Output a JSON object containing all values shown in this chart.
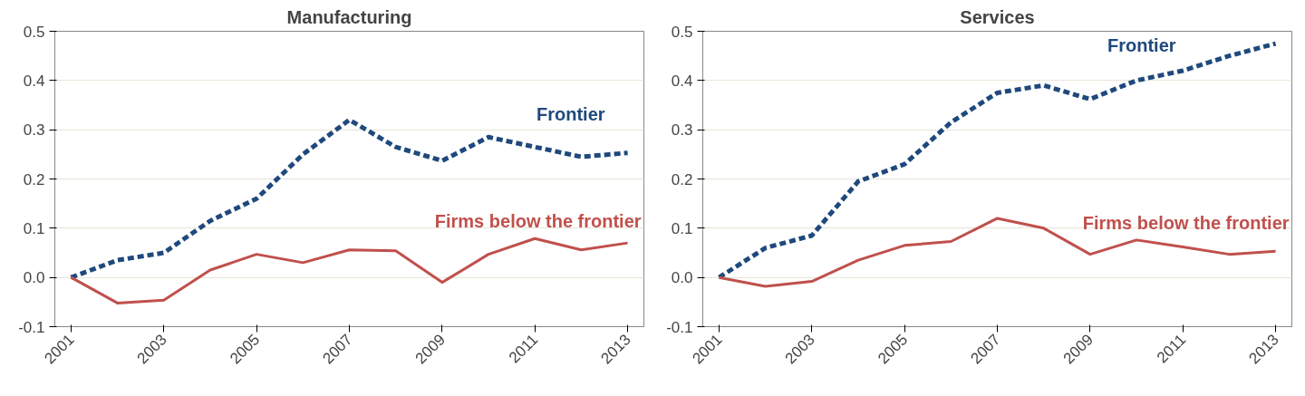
{
  "chart_data": [
    {
      "type": "line",
      "title": "Manufacturing",
      "categories": [
        "2001",
        null,
        "2003",
        null,
        "2005",
        null,
        "2007",
        null,
        "2009",
        null,
        "2011",
        null,
        "2013"
      ],
      "ylim": [
        -0.1,
        0.5
      ],
      "yticks": [
        {
          "value": -0.1,
          "label": "-0.1"
        },
        {
          "value": 0,
          "label": "0.0"
        },
        {
          "value": 0.1,
          "label": "0.1"
        },
        {
          "value": 0.2,
          "label": "0.2"
        },
        {
          "value": 0.3,
          "label": "0.3"
        },
        {
          "value": 0.4,
          "label": "0.4"
        },
        {
          "value": 0.5,
          "label": "0.5"
        }
      ],
      "grid": "y",
      "marker": "none",
      "series": [
        {
          "name": "Frontier",
          "color": "#1f497d",
          "line_style": "dashed",
          "values": [
            0,
            0.035,
            0.05,
            0.115,
            0.16,
            0.25,
            0.32,
            0.265,
            0.237,
            0.285,
            0.265,
            0.245,
            0.253
          ]
        },
        {
          "name": "Firms below the frontier",
          "color": "#c0504d",
          "line_style": "solid",
          "values": [
            0,
            -0.052,
            -0.046,
            0.015,
            0.047,
            0.03,
            0.056,
            0.054,
            -0.01,
            0.047,
            0.079,
            0.056,
            0.07
          ]
        }
      ]
    },
    {
      "type": "line",
      "title": "Services",
      "categories": [
        "2001",
        null,
        "2003",
        null,
        "2005",
        null,
        "2007",
        null,
        "2009",
        null,
        "2011",
        null,
        "2013"
      ],
      "ylim": [
        -0.1,
        0.5
      ],
      "yticks": [
        {
          "value": -0.1,
          "label": "-0.1"
        },
        {
          "value": 0,
          "label": "0.0"
        },
        {
          "value": 0.1,
          "label": "0.1"
        },
        {
          "value": 0.2,
          "label": "0.2"
        },
        {
          "value": 0.3,
          "label": "0.3"
        },
        {
          "value": 0.4,
          "label": "0.4"
        },
        {
          "value": 0.5,
          "label": "0.5"
        }
      ],
      "grid": "y",
      "marker": "none",
      "series": [
        {
          "name": "Frontier",
          "color": "#1f497d",
          "line_style": "dashed",
          "values": [
            0,
            0.06,
            0.085,
            0.195,
            0.23,
            0.315,
            0.375,
            0.39,
            0.362,
            0.4,
            0.42,
            0.45,
            0.475
          ]
        },
        {
          "name": "Firms below the frontier",
          "color": "#c0504d",
          "line_style": "solid",
          "values": [
            0,
            -0.018,
            -0.008,
            0.035,
            0.065,
            0.073,
            0.12,
            0.1,
            0.047,
            0.076,
            0.062,
            0.047,
            0.053
          ]
        }
      ]
    }
  ]
}
